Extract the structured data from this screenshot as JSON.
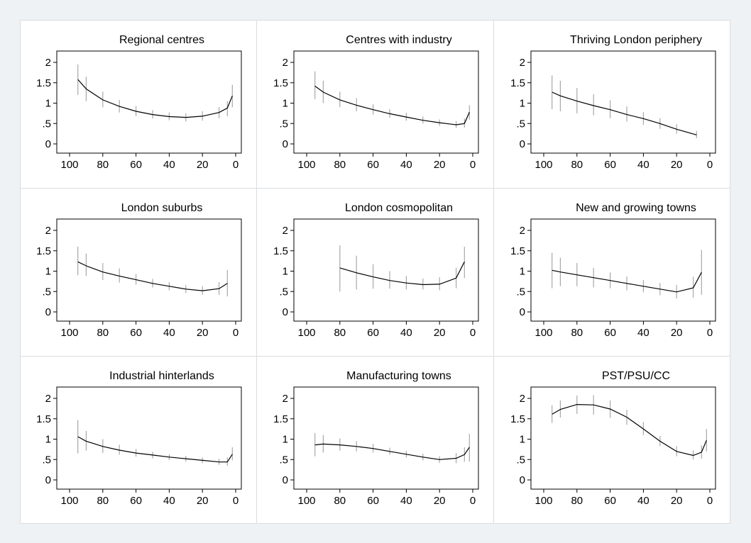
{
  "chart_data": [
    {
      "type": "line",
      "title": "Regional centres",
      "x": [
        95,
        90,
        80,
        70,
        60,
        50,
        40,
        30,
        20,
        10,
        5,
        2
      ],
      "y": [
        1.58,
        1.35,
        1.08,
        0.92,
        0.8,
        0.72,
        0.67,
        0.65,
        0.68,
        0.77,
        0.88,
        1.18
      ],
      "ci_low": [
        1.2,
        1.05,
        0.9,
        0.77,
        0.68,
        0.62,
        0.58,
        0.55,
        0.57,
        0.63,
        0.68,
        0.9
      ],
      "ci_high": [
        1.95,
        1.65,
        1.28,
        1.08,
        0.93,
        0.83,
        0.77,
        0.75,
        0.8,
        0.9,
        1.05,
        1.45
      ],
      "xlim": [
        100,
        0
      ],
      "ylim": [
        0,
        2
      ],
      "xticks": [
        "100",
        "80",
        "60",
        "40",
        "20",
        "0"
      ],
      "yticks": [
        "0",
        ".5",
        "1",
        "1.5",
        "2"
      ]
    },
    {
      "type": "line",
      "title": "Centres with industry",
      "x": [
        95,
        90,
        80,
        70,
        60,
        50,
        40,
        30,
        20,
        10,
        5,
        2
      ],
      "y": [
        1.42,
        1.27,
        1.08,
        0.95,
        0.84,
        0.74,
        0.66,
        0.58,
        0.52,
        0.47,
        0.5,
        0.78
      ],
      "ci_low": [
        1.1,
        1.0,
        0.9,
        0.8,
        0.72,
        0.64,
        0.57,
        0.5,
        0.44,
        0.39,
        0.4,
        0.6
      ],
      "ci_high": [
        1.78,
        1.55,
        1.28,
        1.12,
        0.97,
        0.85,
        0.76,
        0.67,
        0.6,
        0.56,
        0.62,
        0.95
      ],
      "xlim": [
        100,
        0
      ],
      "ylim": [
        0,
        2
      ],
      "xticks": [
        "100",
        "80",
        "60",
        "40",
        "20",
        "0"
      ],
      "yticks": [
        "0",
        ".5",
        "1",
        "1.5",
        "2"
      ]
    },
    {
      "type": "line",
      "title": "Thriving London periphery",
      "x": [
        95,
        90,
        80,
        70,
        60,
        50,
        40,
        30,
        20,
        8
      ],
      "y": [
        1.27,
        1.18,
        1.05,
        0.94,
        0.84,
        0.72,
        0.62,
        0.5,
        0.36,
        0.22
      ],
      "ci_low": [
        0.85,
        0.8,
        0.75,
        0.7,
        0.63,
        0.55,
        0.47,
        0.37,
        0.25,
        0.14
      ],
      "ci_high": [
        1.68,
        1.55,
        1.37,
        1.22,
        1.07,
        0.92,
        0.78,
        0.63,
        0.48,
        0.32
      ],
      "xlim": [
        100,
        0
      ],
      "ylim": [
        0,
        2
      ],
      "xticks": [
        "100",
        "80",
        "60",
        "40",
        "20",
        "0"
      ],
      "yticks": [
        "0",
        ".5",
        "1",
        "1.5",
        "2"
      ]
    },
    {
      "type": "line",
      "title": "London suburbs",
      "x": [
        95,
        90,
        80,
        70,
        60,
        50,
        40,
        30,
        20,
        10,
        5
      ],
      "y": [
        1.23,
        1.13,
        0.98,
        0.88,
        0.79,
        0.7,
        0.63,
        0.56,
        0.52,
        0.57,
        0.7
      ],
      "ci_low": [
        0.9,
        0.88,
        0.78,
        0.72,
        0.67,
        0.6,
        0.53,
        0.46,
        0.42,
        0.42,
        0.38
      ],
      "ci_high": [
        1.6,
        1.43,
        1.2,
        1.07,
        0.93,
        0.81,
        0.73,
        0.66,
        0.63,
        0.73,
        1.03
      ],
      "xlim": [
        100,
        0
      ],
      "ylim": [
        0,
        2
      ],
      "xticks": [
        "100",
        "80",
        "60",
        "40",
        "20",
        "0"
      ],
      "yticks": [
        "0",
        ".5",
        "1",
        "1.5",
        "2"
      ]
    },
    {
      "type": "line",
      "title": "London cosmopolitan",
      "x": [
        80,
        70,
        60,
        50,
        40,
        30,
        20,
        10,
        5
      ],
      "y": [
        1.08,
        0.96,
        0.86,
        0.77,
        0.71,
        0.67,
        0.68,
        0.83,
        1.23
      ],
      "ci_low": [
        0.5,
        0.55,
        0.57,
        0.57,
        0.55,
        0.55,
        0.53,
        0.58,
        0.83
      ],
      "ci_high": [
        1.63,
        1.38,
        1.17,
        1.0,
        0.88,
        0.82,
        0.85,
        1.08,
        1.6
      ],
      "xlim": [
        100,
        0
      ],
      "ylim": [
        0,
        2
      ],
      "xticks": [
        "100",
        "80",
        "60",
        "40",
        "20",
        "0"
      ],
      "yticks": [
        "0",
        ".5",
        "1",
        "1.5",
        "2"
      ]
    },
    {
      "type": "line",
      "title": "New and growing towns",
      "x": [
        95,
        90,
        80,
        70,
        60,
        50,
        40,
        30,
        20,
        10,
        5
      ],
      "y": [
        1.02,
        0.98,
        0.91,
        0.84,
        0.77,
        0.7,
        0.63,
        0.56,
        0.49,
        0.59,
        0.97
      ],
      "ci_low": [
        0.58,
        0.63,
        0.63,
        0.6,
        0.58,
        0.53,
        0.48,
        0.41,
        0.33,
        0.35,
        0.42
      ],
      "ci_high": [
        1.45,
        1.33,
        1.2,
        1.08,
        0.97,
        0.87,
        0.78,
        0.71,
        0.66,
        0.86,
        1.52
      ],
      "xlim": [
        100,
        0
      ],
      "ylim": [
        0,
        2
      ],
      "xticks": [
        "100",
        "80",
        "60",
        "40",
        "20",
        "0"
      ],
      "yticks": [
        "0",
        ".5",
        "1",
        "1.5",
        "2"
      ]
    },
    {
      "type": "line",
      "title": "Industrial hinterlands",
      "x": [
        95,
        90,
        80,
        70,
        60,
        50,
        40,
        30,
        20,
        10,
        5,
        2
      ],
      "y": [
        1.06,
        0.95,
        0.82,
        0.73,
        0.66,
        0.61,
        0.56,
        0.52,
        0.48,
        0.44,
        0.44,
        0.63
      ],
      "ci_low": [
        0.65,
        0.72,
        0.66,
        0.62,
        0.57,
        0.53,
        0.49,
        0.45,
        0.41,
        0.37,
        0.35,
        0.48
      ],
      "ci_high": [
        1.47,
        1.2,
        1.0,
        0.86,
        0.76,
        0.69,
        0.63,
        0.59,
        0.55,
        0.52,
        0.55,
        0.8
      ],
      "xlim": [
        100,
        0
      ],
      "ylim": [
        0,
        2
      ],
      "xticks": [
        "100",
        "80",
        "60",
        "40",
        "20",
        "0"
      ],
      "yticks": [
        "0",
        ".5",
        "1",
        "1.5",
        "2"
      ]
    },
    {
      "type": "line",
      "title": "Manufacturing towns",
      "x": [
        95,
        90,
        80,
        70,
        60,
        50,
        40,
        30,
        20,
        10,
        5,
        2
      ],
      "y": [
        0.86,
        0.88,
        0.86,
        0.82,
        0.77,
        0.7,
        0.63,
        0.56,
        0.5,
        0.53,
        0.62,
        0.8
      ],
      "ci_low": [
        0.58,
        0.67,
        0.72,
        0.7,
        0.67,
        0.62,
        0.55,
        0.48,
        0.42,
        0.41,
        0.45,
        0.45
      ],
      "ci_high": [
        1.15,
        1.1,
        1.02,
        0.95,
        0.88,
        0.79,
        0.71,
        0.64,
        0.58,
        0.66,
        0.8,
        1.13
      ],
      "xlim": [
        100,
        0
      ],
      "ylim": [
        0,
        2
      ],
      "xticks": [
        "100",
        "80",
        "60",
        "40",
        "20",
        "0"
      ],
      "yticks": [
        "0",
        ".5",
        "1",
        "1.5",
        "2"
      ]
    },
    {
      "type": "line",
      "title": "PST/PSU/CC",
      "x": [
        95,
        90,
        80,
        70,
        60,
        50,
        40,
        30,
        20,
        10,
        5,
        2
      ],
      "y": [
        1.61,
        1.73,
        1.85,
        1.84,
        1.74,
        1.54,
        1.25,
        0.95,
        0.7,
        0.6,
        0.68,
        0.97
      ],
      "ci_low": [
        1.4,
        1.53,
        1.62,
        1.6,
        1.52,
        1.35,
        1.1,
        0.83,
        0.58,
        0.5,
        0.52,
        0.7
      ],
      "ci_high": [
        1.83,
        1.95,
        2.07,
        2.08,
        1.95,
        1.72,
        1.42,
        1.08,
        0.83,
        0.72,
        0.85,
        1.25
      ],
      "xlim": [
        100,
        0
      ],
      "ylim": [
        0,
        2
      ],
      "xticks": [
        "100",
        "80",
        "60",
        "40",
        "20",
        "0"
      ],
      "yticks": [
        "0",
        ".5",
        "1",
        "1.5",
        "2"
      ]
    }
  ]
}
